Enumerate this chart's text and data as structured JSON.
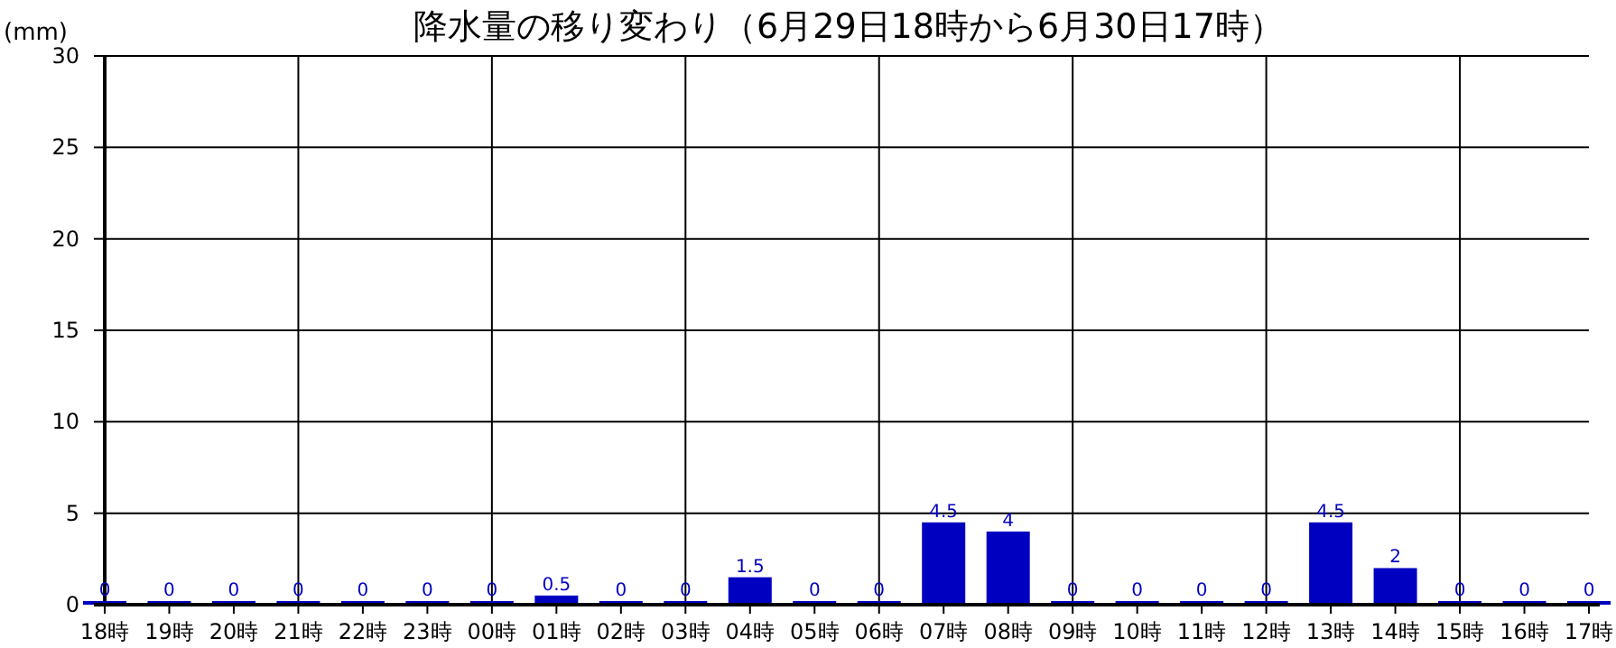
{
  "chart_data": {
    "type": "bar",
    "title": "降水量の移り変わり（6月29日18時から6月30日17時）",
    "ylabel": "(mm)",
    "categories": [
      "18時",
      "19時",
      "20時",
      "21時",
      "22時",
      "23時",
      "00時",
      "01時",
      "02時",
      "03時",
      "04時",
      "05時",
      "06時",
      "07時",
      "08時",
      "09時",
      "10時",
      "11時",
      "12時",
      "13時",
      "14時",
      "15時",
      "16時",
      "17時"
    ],
    "values": [
      0,
      0,
      0,
      0,
      0,
      0,
      0,
      0.5,
      0,
      0,
      1.5,
      0,
      0,
      4.5,
      4,
      0,
      0,
      0,
      0,
      4.5,
      2,
      0,
      0,
      0
    ],
    "color": "#0000c0",
    "ylim": [
      0,
      30
    ],
    "yticks": [
      0,
      5,
      10,
      15,
      20,
      25,
      30
    ],
    "grid": true,
    "data_labels": true
  }
}
